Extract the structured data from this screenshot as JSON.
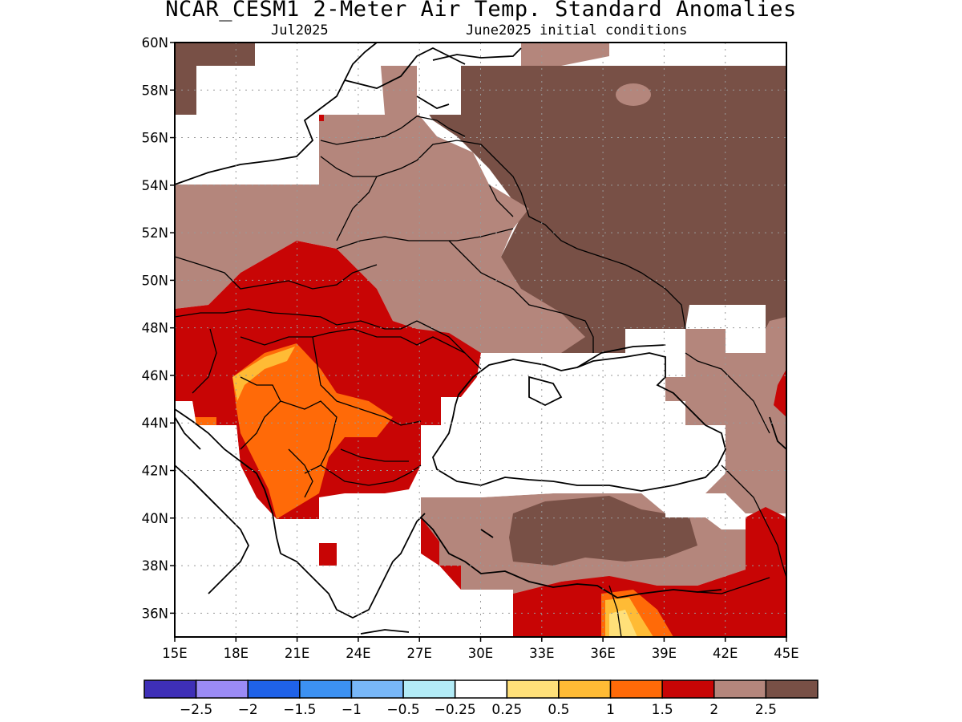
{
  "header": {
    "title": "NCAR_CESM1 2-Meter Air Temp. Standard Anomalies",
    "valid_month": "Jul2025",
    "init_conditions": "June2025 initial conditions"
  },
  "map": {
    "lon_range": [
      15,
      45
    ],
    "lat_range": [
      35,
      60
    ],
    "grid": "dotted",
    "lat_ticks": [
      "36N",
      "38N",
      "40N",
      "42N",
      "44N",
      "46N",
      "48N",
      "50N",
      "52N",
      "54N",
      "56N",
      "58N",
      "60N"
    ],
    "lon_ticks": [
      "15E",
      "18E",
      "21E",
      "24E",
      "27E",
      "30E",
      "33E",
      "36E",
      "39E",
      "42E",
      "45E"
    ],
    "region": "Eastern Europe / Black Sea / Balkans / Anatolia"
  },
  "colorbar": {
    "colors": [
      "#3e2fb7",
      "#9b8bf5",
      "#1f62e8",
      "#3c91f2",
      "#78b7f8",
      "#b3ecf7",
      "#ffffff",
      "#ffe079",
      "#ffbb35",
      "#ff6a08",
      "#c80505",
      "#b4867c",
      "#785046"
    ],
    "labels": [
      "−2.5",
      "−2",
      "−1.5",
      "−1",
      "−0.5",
      "−0.25",
      "0.25",
      "0.5",
      "1",
      "1.5",
      "2",
      "2.5"
    ]
  }
}
